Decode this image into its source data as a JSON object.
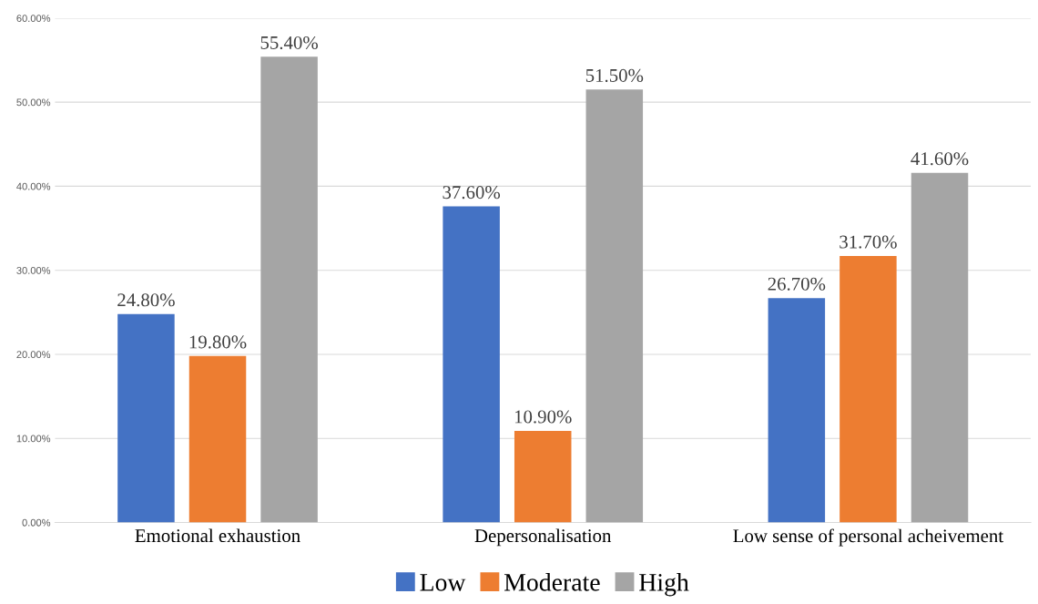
{
  "chart_data": {
    "type": "bar",
    "categories": [
      "Emotional exhaustion",
      "Depersonalisation",
      "Low sense of personal acheivement"
    ],
    "series": [
      {
        "name": "Low",
        "color": "#4472c4",
        "values": [
          24.8,
          37.6,
          26.7
        ],
        "value_labels": [
          "24.80%",
          "37.60%",
          "26.70%"
        ]
      },
      {
        "name": "Moderate",
        "color": "#ed7d31",
        "values": [
          19.8,
          10.9,
          31.7
        ],
        "value_labels": [
          "19.80%",
          "10.90%",
          "31.70%"
        ]
      },
      {
        "name": "High",
        "color": "#a5a5a5",
        "values": [
          55.4,
          51.5,
          41.6
        ],
        "value_labels": [
          "55.40%",
          "51.50%",
          "41.60%"
        ]
      }
    ],
    "ylim": [
      0,
      60
    ],
    "yticks": [
      {
        "value": 0,
        "label": "0.00%"
      },
      {
        "value": 10,
        "label": "10.00%"
      },
      {
        "value": 20,
        "label": "20.00%"
      },
      {
        "value": 30,
        "label": "30.00%"
      },
      {
        "value": 40,
        "label": "40.00%"
      },
      {
        "value": 50,
        "label": "50.00%"
      },
      {
        "value": 60,
        "label": "60.00%"
      }
    ],
    "grid": "y",
    "legend": "bottom"
  }
}
